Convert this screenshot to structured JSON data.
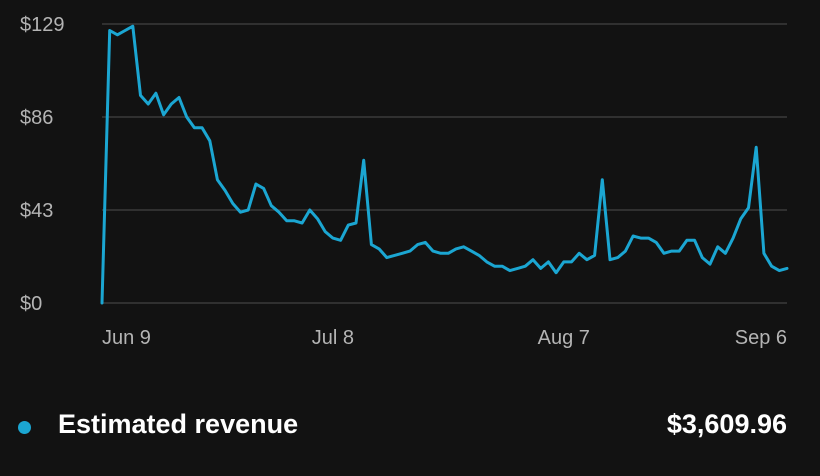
{
  "theme": {
    "background": "#121212",
    "grid_color": "#3a3a3a",
    "series_color": "#1ba6d2",
    "tick_color": "#b4b4b4"
  },
  "legend": {
    "label": "Estimated revenue",
    "total": "$3,609.96"
  },
  "chart_data": {
    "type": "line",
    "grid": true,
    "ylim": [
      0,
      129
    ],
    "y_ticks": [
      {
        "value": 129,
        "label": "$129"
      },
      {
        "value": 86,
        "label": "$86"
      },
      {
        "value": 43,
        "label": "$43"
      },
      {
        "value": 0,
        "label": "$0"
      }
    ],
    "x_ticks": [
      {
        "index": 1,
        "label": "Jun 9"
      },
      {
        "index": 30,
        "label": "Jul 8"
      },
      {
        "index": 60,
        "label": "Aug 7"
      },
      {
        "index": 90,
        "label": "Sep 6"
      }
    ],
    "series": [
      {
        "values": [
          0,
          126,
          124,
          126,
          128,
          96,
          92,
          97,
          87,
          92,
          95,
          86,
          81,
          81,
          75,
          57,
          52,
          46,
          42,
          43,
          55,
          53,
          45,
          42,
          38,
          38,
          37,
          43,
          39,
          33,
          30,
          29,
          36,
          37,
          66,
          27,
          25,
          21,
          22,
          23,
          24,
          27,
          28,
          24,
          23,
          23,
          25,
          26,
          24,
          22,
          19,
          17,
          17,
          15,
          16,
          17,
          20,
          16,
          19,
          14,
          19,
          19,
          23,
          20,
          22,
          57,
          20,
          21,
          24,
          31,
          30,
          30,
          28,
          23,
          24,
          24,
          29,
          29,
          21,
          18,
          26,
          23,
          30,
          39,
          44,
          72,
          23,
          17,
          15,
          16
        ]
      }
    ]
  }
}
